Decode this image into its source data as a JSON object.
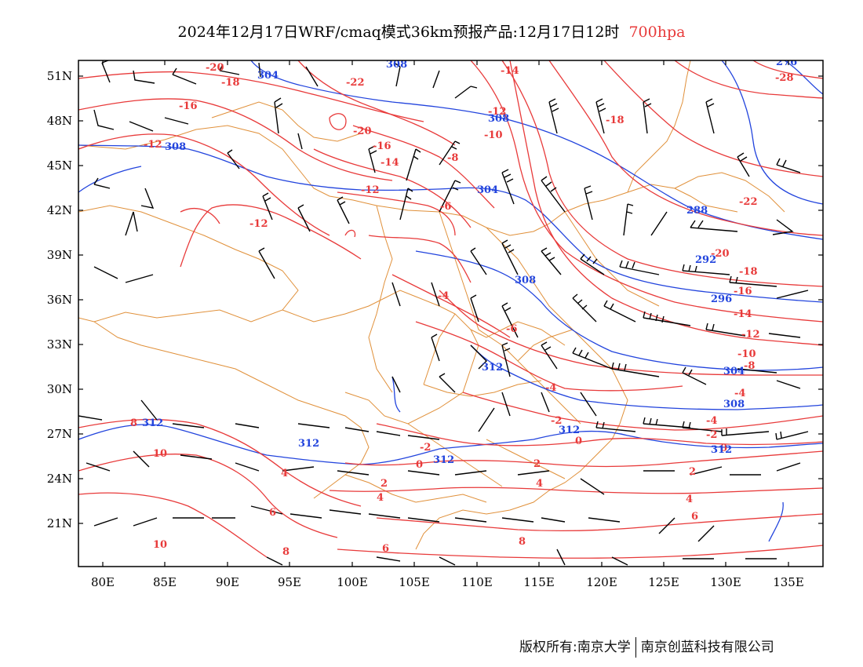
{
  "header": {
    "title": "2024年12月17日WRF/cmaq模式36km预报产品:12月17日12时",
    "level": "700hpa"
  },
  "axes": {
    "lat_labels": [
      "51N",
      "48N",
      "45N",
      "42N",
      "39N",
      "36N",
      "33N",
      "30N",
      "27N",
      "24N",
      "21N"
    ],
    "lon_labels": [
      "80E",
      "85E",
      "90E",
      "95E",
      "100E",
      "105E",
      "110E",
      "115E",
      "120E",
      "125E",
      "130E",
      "135E"
    ]
  },
  "colors": {
    "temperature": "#e83a3a",
    "geopotential": "#2244dd",
    "border": "#e0903a",
    "wind": "#000000"
  },
  "contours": {
    "temperature_labels": [
      "-28",
      "-22",
      "-20",
      "-18",
      "-16",
      "-14",
      "-12",
      "-10",
      "-8",
      "-6",
      "-4",
      "-2",
      "0",
      "2",
      "4",
      "6",
      "8",
      "10"
    ],
    "height_labels": [
      "276",
      "288",
      "292",
      "296",
      "304",
      "308",
      "312"
    ]
  },
  "footer": {
    "copyright_left": "版权所有:南京大学",
    "copyright_right": "南京创蓝科技有限公司"
  }
}
